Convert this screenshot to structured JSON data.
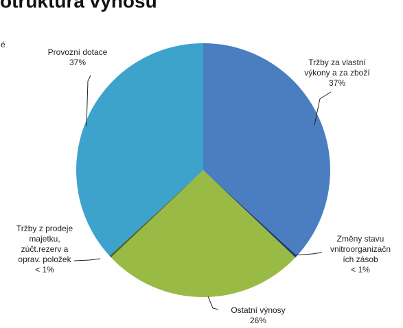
{
  "header": {
    "title_fragment": "otruktura výnosů",
    "edge_fragment": "é"
  },
  "chart_data": {
    "type": "pie",
    "title": "",
    "slices": [
      {
        "name": "Tržby za vlastní výkony a za zboží",
        "label_lines": [
          "Tržby za vlastní",
          "výkony a za zboží",
          "37%"
        ],
        "value": 37,
        "color": "#4a7ec1"
      },
      {
        "name": "Změny stavu vnitroorganizačních zásob",
        "label_lines": [
          "Změny stavu",
          "vnitroorganizačn",
          "ích zásob",
          "< 1%"
        ],
        "value": 0.3,
        "color": "#1f3f70"
      },
      {
        "name": "Ostatní výnosy",
        "label_lines": [
          "Ostatní výnosy",
          "26%"
        ],
        "value": 26,
        "color": "#99bb46"
      },
      {
        "name": "Tržby z prodeje majetku, zúčt.rezerv a oprav. položek",
        "label_lines": [
          "Tržby z prodeje",
          "majetku,",
          "zúčt.rezerv a",
          "oprav. položek",
          "< 1%"
        ],
        "value": 0.3,
        "color": "#4f6a2a"
      },
      {
        "name": "Provozní dotace",
        "label_lines": [
          "Provozní dotace",
          "37%"
        ],
        "value": 37,
        "color": "#3da3cd"
      }
    ],
    "legend": "none",
    "start_angle_deg": 0,
    "direction": "clockwise"
  }
}
